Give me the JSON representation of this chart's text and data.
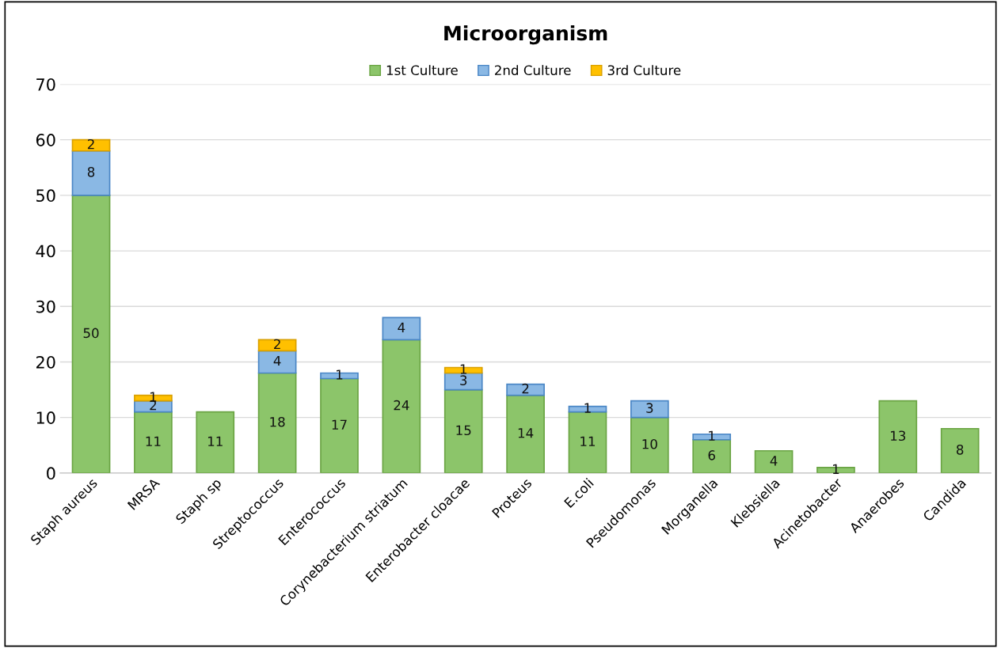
{
  "chart_data": {
    "type": "bar",
    "title": "Microorganism",
    "stacked": true,
    "categories": [
      "Staph aureus",
      "MRSA",
      "Staph sp",
      "Streptococcus",
      "Enterococcus",
      "Corynebacterium striatum",
      "Enterobacter cloacae",
      "Proteus",
      "E.coli",
      "Pseudomonas",
      "Morganella",
      "Klebsiella",
      "Acinetobacter",
      "Anaerobes",
      "Candida"
    ],
    "series": [
      {
        "name": "1st Culture",
        "color": "#8cc56a",
        "values": [
          50,
          11,
          11,
          18,
          17,
          24,
          15,
          14,
          11,
          10,
          6,
          4,
          1,
          13,
          8
        ]
      },
      {
        "name": "2nd Culture",
        "color": "#8ab8e4",
        "values": [
          8,
          2,
          null,
          4,
          1,
          4,
          3,
          2,
          1,
          3,
          1,
          null,
          null,
          null,
          null
        ]
      },
      {
        "name": "3rd Culture",
        "color": "#ffc000",
        "values": [
          2,
          1,
          null,
          2,
          null,
          null,
          1,
          null,
          null,
          null,
          null,
          null,
          null,
          null,
          null
        ]
      }
    ],
    "ylim": [
      0,
      70
    ],
    "yticks": [
      0,
      10,
      20,
      30,
      40,
      50,
      60,
      70
    ],
    "grid": "y",
    "legend": "top",
    "data_labels": true
  }
}
